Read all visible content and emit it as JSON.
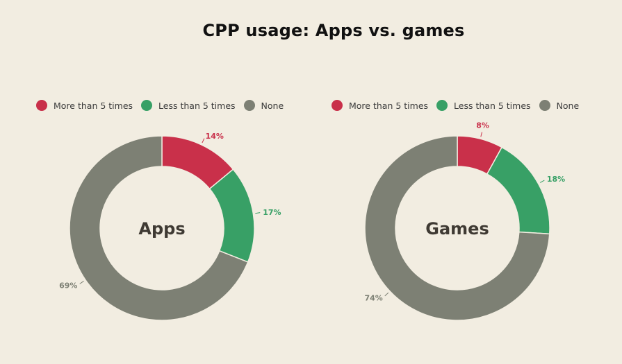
{
  "title": "CPP usage: Apps vs. games",
  "colors": {
    "more": "#c9304a",
    "less": "#38a066",
    "none": "#7d8074",
    "background": "#f2ede1"
  },
  "legend": [
    {
      "label": "More than 5 times",
      "color": "#c9304a"
    },
    {
      "label": "Less than 5 times",
      "color": "#38a066"
    },
    {
      "label": "None",
      "color": "#7d8074"
    }
  ],
  "chart_data": [
    {
      "type": "pie",
      "donut": true,
      "center_label": "Apps",
      "categories": [
        "More than 5 times",
        "Less than 5 times",
        "None"
      ],
      "values": [
        14,
        17,
        69
      ],
      "labels": [
        "14%",
        "17%",
        "69%"
      ]
    },
    {
      "type": "pie",
      "donut": true,
      "center_label": "Games",
      "categories": [
        "More than 5 times",
        "Less than 5 times",
        "None"
      ],
      "values": [
        8,
        18,
        74
      ],
      "labels": [
        "8%",
        "18%",
        "74%"
      ]
    }
  ]
}
